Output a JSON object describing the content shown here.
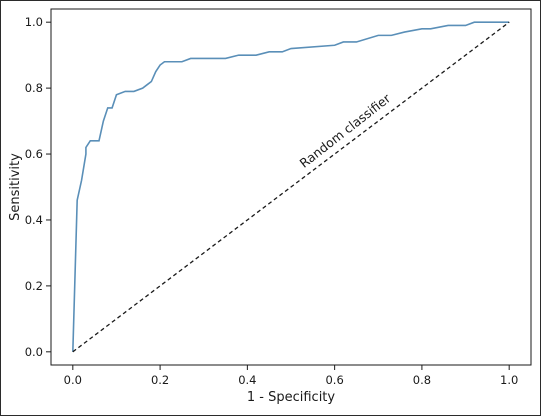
{
  "chart_data": {
    "type": "line",
    "xlabel": "1 - Specificity",
    "ylabel": "Sensitivity",
    "xlim": [
      -0.05,
      1.05
    ],
    "ylim": [
      -0.04,
      1.04
    ],
    "xticks": [
      0.0,
      0.2,
      0.4,
      0.6,
      0.8,
      1.0
    ],
    "yticks": [
      0.0,
      0.2,
      0.4,
      0.6,
      0.8,
      1.0
    ],
    "xtick_labels": [
      "0.0",
      "0.2",
      "0.4",
      "0.6",
      "0.8",
      "1.0"
    ],
    "ytick_labels": [
      "0.0",
      "0.2",
      "0.4",
      "0.6",
      "0.8",
      "1.0"
    ],
    "grid": false,
    "series": [
      {
        "color": "#5a8fb8",
        "style": "solid",
        "x": [
          0.0,
          0.01,
          0.02,
          0.03,
          0.03,
          0.04,
          0.06,
          0.07,
          0.08,
          0.09,
          0.1,
          0.12,
          0.14,
          0.16,
          0.17,
          0.18,
          0.19,
          0.2,
          0.21,
          0.22,
          0.25,
          0.27,
          0.35,
          0.38,
          0.42,
          0.45,
          0.48,
          0.5,
          0.6,
          0.62,
          0.65,
          0.7,
          0.73,
          0.76,
          0.8,
          0.82,
          0.86,
          0.9,
          0.92,
          1.0
        ],
        "y": [
          0.0,
          0.46,
          0.52,
          0.6,
          0.62,
          0.64,
          0.64,
          0.7,
          0.74,
          0.74,
          0.78,
          0.79,
          0.79,
          0.8,
          0.81,
          0.82,
          0.85,
          0.87,
          0.88,
          0.88,
          0.88,
          0.89,
          0.89,
          0.9,
          0.9,
          0.91,
          0.91,
          0.92,
          0.93,
          0.94,
          0.94,
          0.96,
          0.96,
          0.97,
          0.98,
          0.98,
          0.99,
          0.99,
          1.0,
          1.0
        ]
      },
      {
        "color": "#1a1a1a",
        "style": "dashed",
        "x": [
          0.0,
          1.0
        ],
        "y": [
          0.0,
          1.0
        ]
      }
    ],
    "annotations": [
      {
        "text": "Random classifier",
        "x": 0.63,
        "y": 0.66,
        "rotation_deg": -38
      }
    ]
  }
}
